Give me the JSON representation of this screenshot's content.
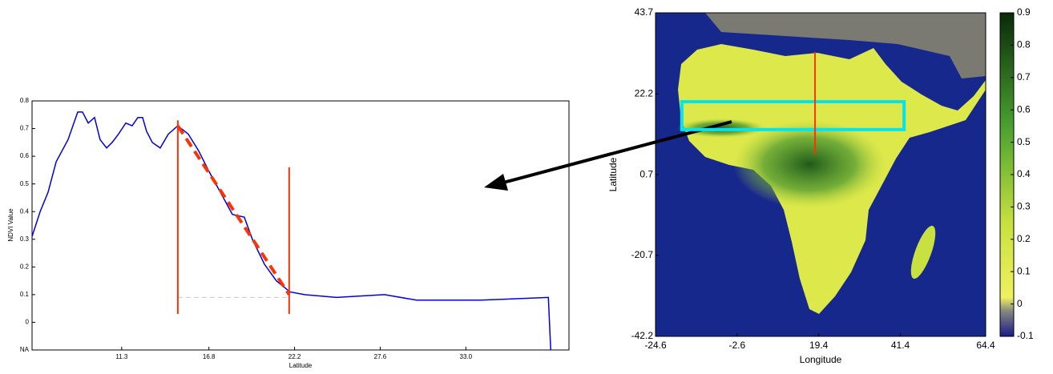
{
  "chart_data": [
    {
      "type": "line",
      "xlabel": "Latitude",
      "ylabel": "NDVI Value",
      "x": [
        5.65,
        6.16,
        6.66,
        7.17,
        7.92,
        8.53,
        8.83,
        9.19,
        9.59,
        9.94,
        10.35,
        10.7,
        11.1,
        11.56,
        11.96,
        12.32,
        12.62,
        12.87,
        13.23,
        13.73,
        14.24,
        14.84,
        15.5,
        16.15,
        16.76,
        17.52,
        18.28,
        19.03,
        19.54,
        20.3,
        21.05,
        21.91,
        22.82,
        24.84,
        27.87,
        29.89,
        33.93,
        38.2,
        38.35
      ],
      "series": [
        {
          "color": "#0000dd",
          "values": [
            0.31,
            0.4,
            0.47,
            0.58,
            0.66,
            0.76,
            0.76,
            0.72,
            0.74,
            0.66,
            0.63,
            0.65,
            0.68,
            0.72,
            0.71,
            0.74,
            0.74,
            0.69,
            0.65,
            0.63,
            0.68,
            0.71,
            0.68,
            0.62,
            0.55,
            0.47,
            0.39,
            0.38,
            0.3,
            0.21,
            0.15,
            0.11,
            0.1,
            0.09,
            0.1,
            0.08,
            0.08,
            0.09,
            -0.1
          ]
        }
      ],
      "vlines": [
        {
          "x": 14.84,
          "y": [
            0.03,
            0.73
          ]
        },
        {
          "x": 21.86,
          "y": [
            0.03,
            0.56
          ]
        }
      ],
      "trend": {
        "x": [
          14.84,
          21.86
        ],
        "y": [
          0.71,
          0.1
        ]
      },
      "baseline": {
        "x": [
          14.84,
          21.86
        ],
        "y": 0.09
      },
      "marker_color": "#ff3300",
      "xlim": [
        5.65,
        39.5
      ],
      "xticks": [
        11.3,
        16.8,
        22.2,
        27.6,
        {
          "value": 33,
          "label": "33.0"
        }
      ],
      "ylim": [
        -0.1,
        0.8
      ],
      "yticks": [
        {
          "value": -0.1,
          "label": "NA"
        },
        0,
        0.1,
        0.2,
        0.3,
        0.4,
        0.5,
        0.6,
        0.7,
        0.8
      ]
    },
    {
      "type": "map",
      "xlabel": "Longitude",
      "ylabel": "Latitude",
      "xlim": [
        -24.6,
        64.4
      ],
      "xticks": [
        -24.6,
        -2.6,
        19.4,
        41.4,
        64.4
      ],
      "ylim": [
        -42.2,
        43.7
      ],
      "yticks": [
        -42.2,
        -20.7,
        0.7,
        22.2,
        43.7
      ],
      "box": {
        "x": [
          -17.5,
          42.4
        ],
        "y": [
          12.7,
          20.1
        ],
        "color": "#00e5ee"
      },
      "transect": {
        "x": 18.4,
        "y": [
          6.1,
          33.3
        ],
        "color": "#ff3300"
      },
      "colorbar": {
        "lim": [
          -0.1,
          0.9
        ],
        "ticks": [
          -0.1,
          0,
          0.1,
          0.2,
          0.3,
          0.4,
          0.5,
          0.6,
          0.7,
          0.8,
          0.9
        ]
      }
    }
  ]
}
